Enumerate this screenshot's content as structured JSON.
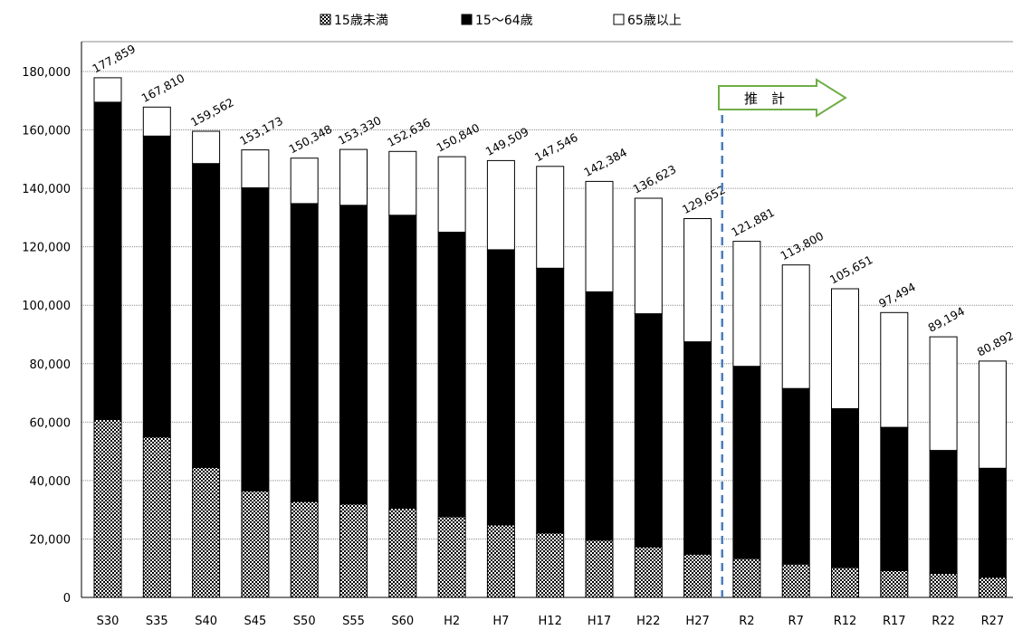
{
  "chart_data": {
    "type": "bar",
    "stacked": true,
    "categories": [
      "S30",
      "S35",
      "S40",
      "S45",
      "S50",
      "S55",
      "S60",
      "H2",
      "H7",
      "H12",
      "H17",
      "H22",
      "H27",
      "R2",
      "R7",
      "R12",
      "R17",
      "R22",
      "R27"
    ],
    "series": [
      {
        "name": "15歳未満",
        "pattern": "checker",
        "values": [
          60900,
          54900,
          44500,
          36400,
          32800,
          31900,
          30500,
          27600,
          24800,
          22000,
          19600,
          17300,
          14800,
          13300,
          11400,
          10200,
          9200,
          8200,
          6900
        ]
      },
      {
        "name": "15～64歳",
        "color": "#000000",
        "values": [
          108600,
          103000,
          104000,
          103800,
          102000,
          102300,
          100300,
          97400,
          94200,
          90700,
          85000,
          79800,
          72700,
          65800,
          60100,
          54400,
          49000,
          42100,
          37300
        ]
      },
      {
        "name": "65歳以上",
        "color": "#ffffff",
        "values": [
          8359,
          9910,
          11062,
          12973,
          15548,
          19130,
          21836,
          25840,
          30509,
          34846,
          37784,
          39523,
          42152,
          42781,
          42300,
          41051,
          39294,
          38894,
          36692
        ]
      }
    ],
    "totals": [
      "177,859",
      "167,810",
      "159,562",
      "153,173",
      "150,348",
      "153,330",
      "152,636",
      "150,840",
      "149,509",
      "147,546",
      "142,384",
      "136,623",
      "129,652",
      "121,881",
      "113,800",
      "105,651",
      "97,494",
      "89,194",
      "80,892"
    ],
    "yticks": [
      "0",
      "20,000",
      "40,000",
      "60,000",
      "80,000",
      "100,000",
      "120,000",
      "140,000",
      "160,000",
      "180,000"
    ],
    "ylim": [
      0,
      190000
    ],
    "legend": {
      "position": "top-center",
      "items": [
        "15歳未満",
        "15～64歳",
        "65歳以上"
      ]
    },
    "projection": {
      "label": "推　計",
      "start_index": 13
    }
  }
}
